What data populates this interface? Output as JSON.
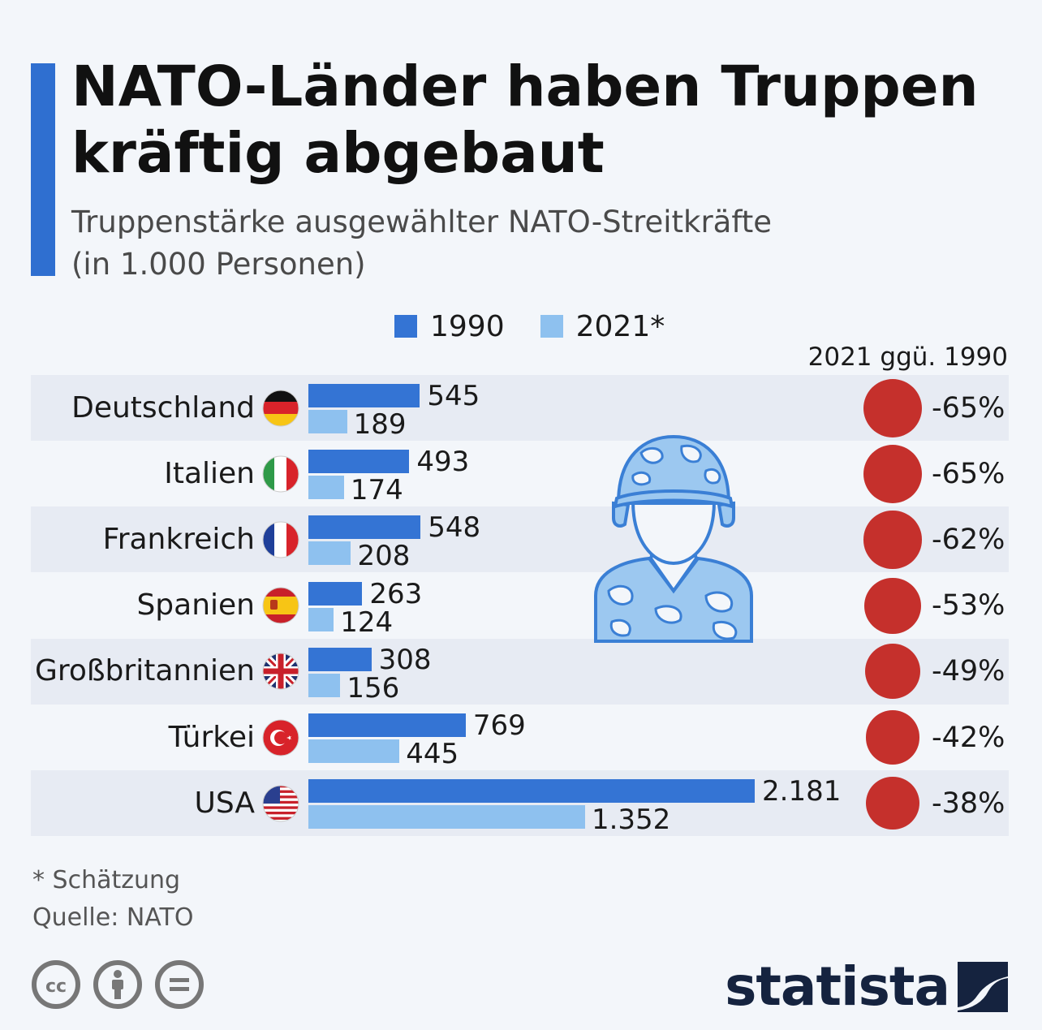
{
  "header": {
    "title_line1": "NATO-Länder haben Truppen",
    "title_line2": "kräftig abgebaut",
    "subtitle_line1": "Truppenstärke ausgewählter NATO-Streitkräfte",
    "subtitle_line2": "(in 1.000 Personen)"
  },
  "legend": {
    "label_1990": "1990",
    "label_2021": "2021*"
  },
  "change_column_header": "2021 ggü. 1990",
  "colors": {
    "bar_1990": "#3474d4",
    "bar_2021": "#8ec1ef",
    "change_dot": "#c5302c",
    "accent": "#2f6fd0"
  },
  "chart_data": {
    "type": "bar",
    "orientation": "horizontal",
    "categories": [
      "Deutschland",
      "Italien",
      "Frankreich",
      "Spanien",
      "Großbritannien",
      "Türkei",
      "USA"
    ],
    "flags": [
      "germany-flag",
      "italy-flag",
      "france-flag",
      "spain-flag",
      "uk-flag",
      "turkey-flag",
      "usa-flag"
    ],
    "series": [
      {
        "name": "1990",
        "values": [
          545,
          493,
          548,
          263,
          308,
          769,
          2181
        ],
        "labels": [
          "545",
          "493",
          "548",
          "263",
          "308",
          "769",
          "2.181"
        ]
      },
      {
        "name": "2021*",
        "values": [
          189,
          174,
          208,
          124,
          156,
          445,
          1352
        ],
        "labels": [
          "189",
          "174",
          "208",
          "124",
          "156",
          "445",
          "1.352"
        ]
      }
    ],
    "change_pct": [
      -65,
      -65,
      -62,
      -53,
      -49,
      -42,
      -38
    ],
    "change_labels": [
      "-65%",
      "-65%",
      "-62%",
      "-53%",
      "-49%",
      "-42%",
      "-38%"
    ],
    "xlim": [
      0,
      2181
    ],
    "grid": false,
    "legend_position": "top"
  },
  "footer": {
    "footnote": "* Schätzung",
    "source": "Quelle: NATO",
    "brand": "statista"
  }
}
